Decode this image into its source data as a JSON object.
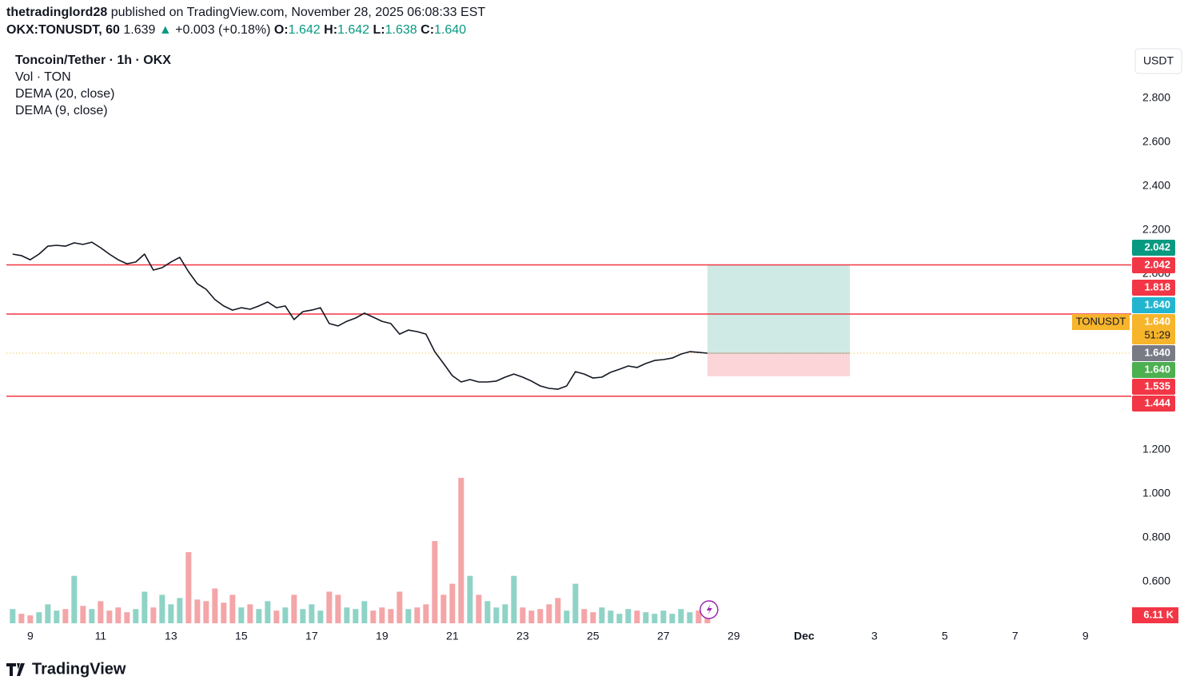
{
  "header": {
    "author": "thetradinglord28",
    "published": "published on TradingView.com, November 28, 2025 06:08:33 EST",
    "symbol": "OKX:TONUSDT, 60",
    "price": "1.639",
    "arrow": "▲",
    "change": "+0.003 (+0.18%)",
    "o_label": "O:",
    "o": "1.642",
    "h_label": "H:",
    "h": "1.642",
    "l_label": "L:",
    "l": "1.638",
    "c_label": "C:",
    "c": "1.640",
    "currency_button": "USDT",
    "brand": "TradingView"
  },
  "chart_data": {
    "type": "line",
    "x": [
      8.5,
      8.75,
      9,
      9.25,
      9.5,
      9.75,
      10,
      10.25,
      10.5,
      10.75,
      11,
      11.25,
      11.5,
      11.75,
      12,
      12.25,
      12.5,
      12.75,
      13,
      13.25,
      13.5,
      13.75,
      14,
      14.25,
      14.5,
      14.75,
      15,
      15.25,
      15.5,
      15.75,
      16,
      16.25,
      16.5,
      16.75,
      17,
      17.25,
      17.5,
      17.75,
      18,
      18.25,
      18.5,
      18.75,
      19,
      19.25,
      19.5,
      19.75,
      20,
      20.25,
      20.5,
      20.75,
      21,
      21.25,
      21.5,
      21.75,
      22,
      22.25,
      22.5,
      22.75,
      23,
      23.25,
      23.5,
      23.75,
      24,
      24.25,
      24.5,
      24.75,
      25,
      25.25,
      25.5,
      25.75,
      26,
      26.25,
      26.5,
      26.75,
      27,
      27.25,
      27.5,
      27.75,
      28,
      28.25
    ],
    "series": [
      {
        "name": "Toncoin/Tether · 1h · OKX",
        "color": "#131722",
        "values": [
          2.091,
          2.084,
          2.065,
          2.091,
          2.127,
          2.131,
          2.127,
          2.142,
          2.135,
          2.145,
          2.12,
          2.091,
          2.065,
          2.047,
          2.055,
          2.091,
          2.018,
          2.029,
          2.055,
          2.076,
          2.011,
          1.956,
          1.931,
          1.884,
          1.855,
          1.836,
          1.847,
          1.84,
          1.855,
          1.873,
          1.847,
          1.855,
          1.793,
          1.829,
          1.836,
          1.847,
          1.775,
          1.764,
          1.785,
          1.8,
          1.822,
          1.804,
          1.785,
          1.775,
          1.727,
          1.745,
          1.738,
          1.727,
          1.647,
          1.593,
          1.538,
          1.509,
          1.52,
          1.509,
          1.509,
          1.513,
          1.531,
          1.545,
          1.531,
          1.513,
          1.491,
          1.48,
          1.476,
          1.491,
          1.556,
          1.545,
          1.527,
          1.531,
          1.553,
          1.567,
          1.582,
          1.575,
          1.593,
          1.607,
          1.611,
          1.618,
          1.636,
          1.647,
          1.644,
          1.64
        ]
      }
    ],
    "volume": {
      "name": "Vol · TON",
      "up_color": "#8fd3c6",
      "down_color": "#f4a5a8",
      "values": [
        9000,
        6000,
        5000,
        7000,
        12000,
        8000,
        9000,
        30000,
        11000,
        9000,
        14000,
        8000,
        10000,
        7000,
        9000,
        20000,
        10000,
        18000,
        12000,
        16000,
        45000,
        15000,
        14000,
        22000,
        13000,
        18000,
        10000,
        12000,
        9000,
        14000,
        8000,
        10000,
        18000,
        9000,
        12000,
        8000,
        20000,
        18000,
        10000,
        9000,
        14000,
        8000,
        10000,
        9000,
        20000,
        9000,
        10000,
        12000,
        52000,
        18000,
        25000,
        92000,
        30000,
        18000,
        14000,
        10000,
        12000,
        30000,
        10000,
        8000,
        9000,
        12000,
        16000,
        8000,
        25000,
        9000,
        7000,
        10000,
        8000,
        6000,
        9000,
        8000,
        7000,
        6000,
        8000,
        6000,
        9000,
        7000,
        8000,
        6110
      ],
      "last_label": {
        "value": 6110,
        "label": "6.11 K"
      },
      "label_color": "#f23645"
    },
    "indicators": [
      "DEMA (20, close)",
      "DEMA (9, close)"
    ],
    "xlim": [
      8.14,
      40.3
    ],
    "xticks": [
      9,
      11,
      13,
      15,
      17,
      19,
      21,
      23,
      25,
      27,
      29,
      {
        "value": 31,
        "label": "Dec"
      },
      {
        "value": 33,
        "label": "3"
      },
      {
        "value": 35,
        "label": "5"
      },
      {
        "value": 37,
        "label": "7"
      },
      {
        "value": 39,
        "label": "9"
      }
    ],
    "ylim": [
      0.411,
      3.029
    ],
    "yticks": [
      {
        "value": 2.8,
        "label": "2.800"
      },
      {
        "value": 2.6,
        "label": "2.600"
      },
      {
        "value": 2.4,
        "label": "2.400"
      },
      {
        "value": 2.2,
        "label": "2.200"
      },
      {
        "value": 2.0,
        "label": "2.000"
      },
      {
        "value": 1.2,
        "label": "1.200"
      },
      {
        "value": 1.0,
        "label": "1.000"
      },
      {
        "value": 0.8,
        "label": "0.800"
      },
      {
        "value": 0.6,
        "label": "0.600"
      }
    ],
    "levels": [
      2.042,
      1.818,
      1.444
    ],
    "level_color": "#f23645",
    "position": {
      "entry": 1.64,
      "target": 2.042,
      "stop": 1.535,
      "x_start": 28.25,
      "x_end": 32.3,
      "profit_color": "#cfeae5",
      "loss_color": "#fbd5d8"
    },
    "symbol_tag": "TONUSDT",
    "countdown": "51:29",
    "price_labels": [
      {
        "value": 2.042,
        "label": "2.042",
        "color": "#089981"
      },
      {
        "value": 2.042,
        "label": "2.042",
        "color": "#f23645"
      },
      {
        "value": 1.818,
        "label": "1.818",
        "color": "#f23645"
      },
      {
        "value": 1.64,
        "label": "1.640",
        "color": "#22b5d0"
      },
      {
        "value": 1.64,
        "label": "1.640",
        "color": "#f7b52c"
      },
      {
        "value": 1.64,
        "label": "1.640",
        "color": "#787b86"
      },
      {
        "value": 1.64,
        "label": "1.640",
        "color": "#4caf50"
      },
      {
        "value": 1.535,
        "label": "1.535",
        "color": "#f23645"
      },
      {
        "value": 1.444,
        "label": "1.444",
        "color": "#f23645"
      }
    ]
  }
}
